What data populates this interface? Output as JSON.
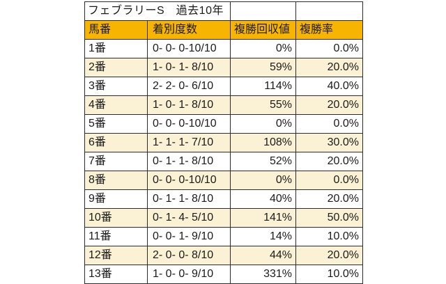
{
  "chart_data": {
    "type": "table",
    "title": "フェブラリーS　過去10年",
    "columns": [
      "馬番",
      "着別度数",
      "複勝回収値",
      "複勝率"
    ],
    "rows": [
      [
        "1番",
        "0- 0- 0-10/10",
        "0%",
        "0.0%"
      ],
      [
        "2番",
        "1- 0- 1- 8/10",
        "59%",
        "20.0%"
      ],
      [
        "3番",
        "2- 2- 0- 6/10",
        "114%",
        "40.0%"
      ],
      [
        "4番",
        "1- 0- 1- 8/10",
        "55%",
        "20.0%"
      ],
      [
        "5番",
        "0- 0- 0-10/10",
        "0%",
        "0.0%"
      ],
      [
        "6番",
        "1- 1- 1- 7/10",
        "108%",
        "30.0%"
      ],
      [
        "7番",
        "0- 1- 1- 8/10",
        "52%",
        "20.0%"
      ],
      [
        "8番",
        "0- 0- 0-10/10",
        "0%",
        "0.0%"
      ],
      [
        "9番",
        "0- 1- 1- 8/10",
        "40%",
        "20.0%"
      ],
      [
        "10番",
        "0- 1- 4- 5/10",
        "141%",
        "50.0%"
      ],
      [
        "11番",
        "0- 0- 1- 9/10",
        "14%",
        "10.0%"
      ],
      [
        "12番",
        "2- 0- 0- 8/10",
        "44%",
        "20.0%"
      ],
      [
        "13番",
        "1- 0- 0- 9/10",
        "331%",
        "10.0%"
      ]
    ],
    "legend": null,
    "grid": true
  },
  "colors": {
    "header_bg": "#f7b400",
    "row_alt_bg": "#fbf2d5",
    "border": "#2b2b2b",
    "text": "#1a1a1a",
    "background": "#ffffff"
  }
}
